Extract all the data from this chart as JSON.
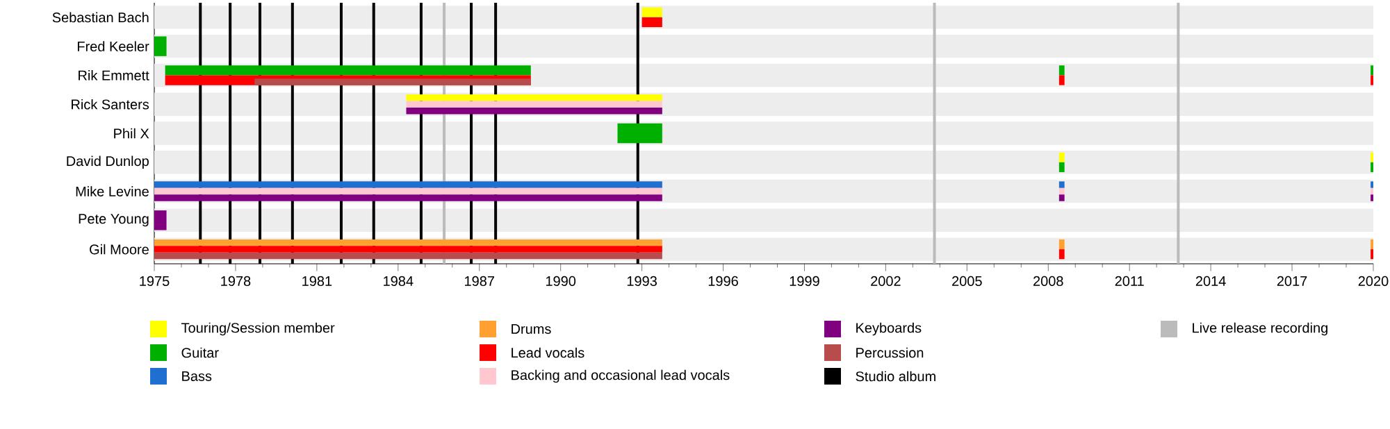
{
  "chart_data": {
    "type": "bar",
    "orientation": "horizontal",
    "legend": "bottom",
    "categories": [
      "Sebastian Bach",
      "Fred Keeler",
      "Rik Emmett",
      "Rick Santers",
      "Phil X",
      "David Dunlop",
      "Mike Levine",
      "Pete Young",
      "Gil Moore"
    ],
    "xlim": [
      1975,
      2020
    ],
    "xticks": [
      1975,
      1978,
      1981,
      1984,
      1987,
      1990,
      1993,
      1996,
      1999,
      2002,
      2005,
      2008,
      2011,
      2014,
      2017,
      2020
    ],
    "series": [
      {
        "name": "Touring/Session member",
        "color": "#ffff00",
        "values": [
          0.75,
          null,
          null,
          9.45,
          null,
          null,
          null,
          null,
          null
        ],
        "base": [
          1993.0,
          null,
          null,
          1984.3,
          null,
          null,
          null,
          null,
          null
        ]
      },
      {
        "name": "Guitar",
        "color": "#00b000",
        "values": [
          null,
          0.45,
          13.5,
          null,
          1.65,
          null,
          null,
          null,
          null
        ],
        "base": [
          null,
          1975,
          1975.4,
          null,
          1992.1,
          null,
          null,
          null,
          null
        ]
      },
      {
        "name": "Bass",
        "color": "#1f6fd0",
        "values": [
          null,
          null,
          null,
          null,
          null,
          null,
          18.75,
          null,
          null
        ],
        "base": [
          null,
          null,
          null,
          null,
          null,
          null,
          1975,
          null,
          null
        ]
      },
      {
        "name": "Drums",
        "color": "#ffa030",
        "values": [
          null,
          null,
          null,
          null,
          null,
          null,
          null,
          null,
          18.75
        ],
        "base": [
          null,
          null,
          null,
          null,
          null,
          null,
          null,
          null,
          1975
        ]
      },
      {
        "name": "Lead vocals",
        "color": "#ff0000",
        "values": [
          0.75,
          null,
          13.5,
          null,
          null,
          null,
          null,
          null,
          18.75
        ],
        "base": [
          1993.0,
          null,
          1975.4,
          null,
          null,
          null,
          null,
          null,
          1975
        ]
      },
      {
        "name": "Backing and occasional lead vocals",
        "color": "#ffc8d0",
        "values": [
          null,
          null,
          null,
          9.45,
          null,
          null,
          18.75,
          null,
          null
        ],
        "base": [
          null,
          null,
          null,
          1984.3,
          null,
          null,
          1975,
          null,
          null
        ]
      },
      {
        "name": "Keyboards",
        "color": "#800080",
        "values": [
          null,
          null,
          null,
          9.45,
          null,
          null,
          18.75,
          0.45,
          null
        ],
        "base": [
          null,
          null,
          null,
          1984.3,
          null,
          null,
          1975,
          1975,
          null
        ]
      },
      {
        "name": "Percussion",
        "color": "#b84c4c",
        "values": [
          null,
          null,
          10.2,
          null,
          null,
          null,
          null,
          null,
          18.75
        ],
        "base": [
          null,
          null,
          1978.7,
          null,
          null,
          null,
          null,
          null,
          1975
        ]
      },
      {
        "color": "#ffff00",
        "values": [
          null,
          null,
          null,
          null,
          null,
          0.2,
          null,
          null,
          null
        ],
        "base": [
          null,
          null,
          null,
          null,
          null,
          2008.4,
          null,
          null,
          null
        ]
      },
      {
        "color": "#00b000",
        "values": [
          null,
          null,
          0.2,
          null,
          null,
          0.2,
          null,
          null,
          null
        ],
        "base": [
          null,
          null,
          2008.4,
          null,
          null,
          2008.4,
          null,
          null,
          null
        ]
      },
      {
        "color": "#1f6fd0",
        "values": [
          null,
          null,
          null,
          null,
          null,
          null,
          0.2,
          null,
          null
        ],
        "base": [
          null,
          null,
          null,
          null,
          null,
          null,
          2008.4,
          null,
          null
        ]
      },
      {
        "color": "#ffa030",
        "values": [
          null,
          null,
          null,
          null,
          null,
          null,
          null,
          null,
          0.2
        ],
        "base": [
          null,
          null,
          null,
          null,
          null,
          null,
          null,
          null,
          2008.4
        ]
      },
      {
        "color": "#ff0000",
        "values": [
          null,
          null,
          0.2,
          null,
          null,
          null,
          null,
          null,
          0.2
        ],
        "base": [
          null,
          null,
          2008.4,
          null,
          null,
          null,
          null,
          null,
          2008.4
        ]
      },
      {
        "color": "#ffc8d0",
        "values": [
          null,
          null,
          null,
          null,
          null,
          null,
          0.2,
          null,
          null
        ],
        "base": [
          null,
          null,
          null,
          null,
          null,
          null,
          2008.4,
          null,
          null
        ]
      },
      {
        "color": "#800080",
        "values": [
          null,
          null,
          null,
          null,
          null,
          null,
          0.2,
          null,
          null
        ],
        "base": [
          null,
          null,
          null,
          null,
          null,
          null,
          2008.4,
          null,
          null
        ]
      },
      {
        "color": "#ffff00",
        "values": [
          null,
          null,
          null,
          null,
          null,
          0.1,
          null,
          null,
          null
        ],
        "base": [
          null,
          null,
          null,
          null,
          null,
          2019.9,
          null,
          null,
          null
        ]
      },
      {
        "color": "#00b000",
        "values": [
          null,
          null,
          0.1,
          null,
          null,
          0.1,
          null,
          null,
          null
        ],
        "base": [
          null,
          null,
          2019.9,
          null,
          null,
          2019.9,
          null,
          null,
          null
        ]
      },
      {
        "color": "#1f6fd0",
        "values": [
          null,
          null,
          null,
          null,
          null,
          null,
          0.1,
          null,
          null
        ],
        "base": [
          null,
          null,
          null,
          null,
          null,
          null,
          2019.9,
          null,
          null
        ]
      },
      {
        "color": "#ffa030",
        "values": [
          null,
          null,
          null,
          null,
          null,
          null,
          null,
          null,
          0.1
        ],
        "base": [
          null,
          null,
          null,
          null,
          null,
          null,
          null,
          null,
          2019.9
        ]
      },
      {
        "color": "#ff0000",
        "values": [
          null,
          null,
          0.1,
          null,
          null,
          null,
          null,
          null,
          0.1
        ],
        "base": [
          null,
          null,
          2019.9,
          null,
          null,
          null,
          null,
          null,
          2019.9
        ]
      },
      {
        "color": "#ffc8d0",
        "values": [
          null,
          null,
          null,
          null,
          null,
          null,
          0.1,
          null,
          null
        ],
        "base": [
          null,
          null,
          null,
          null,
          null,
          null,
          2019.9,
          null,
          null
        ]
      },
      {
        "color": "#800080",
        "values": [
          null,
          null,
          null,
          null,
          null,
          null,
          0.1,
          null,
          null
        ],
        "base": [
          null,
          null,
          null,
          null,
          null,
          null,
          2019.9,
          null,
          null
        ]
      }
    ],
    "ref_lines": [
      {
        "axis": "x",
        "value": 1976.7,
        "color": "#000000",
        "label": "Studio album"
      },
      {
        "axis": "x",
        "value": 1977.8,
        "color": "#000000"
      },
      {
        "axis": "x",
        "value": 1978.9,
        "color": "#000000"
      },
      {
        "axis": "x",
        "value": 1980.1,
        "color": "#000000"
      },
      {
        "axis": "x",
        "value": 1981.9,
        "color": "#000000"
      },
      {
        "axis": "x",
        "value": 1983.1,
        "color": "#000000"
      },
      {
        "axis": "x",
        "value": 1984.85,
        "color": "#000000"
      },
      {
        "axis": "x",
        "value": 1986.7,
        "color": "#000000"
      },
      {
        "axis": "x",
        "value": 1987.6,
        "color": "#000000"
      },
      {
        "axis": "x",
        "value": 1992.85,
        "color": "#000000"
      },
      {
        "axis": "x",
        "value": 1985.7,
        "color": "#bbbbbb",
        "label": "Live release recording"
      },
      {
        "axis": "x",
        "value": 2003.8,
        "color": "#bbbbbb"
      },
      {
        "axis": "x",
        "value": 2012.8,
        "color": "#bbbbbb"
      }
    ]
  }
}
